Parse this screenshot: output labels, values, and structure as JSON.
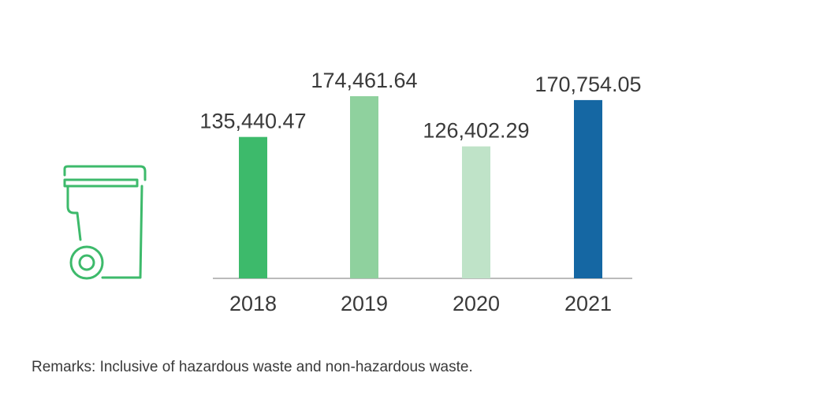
{
  "chart_data": {
    "type": "bar",
    "title": "",
    "xlabel": "",
    "ylabel": "",
    "categories": [
      "2018",
      "2019",
      "2020",
      "2021"
    ],
    "values": [
      135440.47,
      174461.64,
      126402.29,
      170754.05
    ],
    "value_labels": [
      "135,440.47",
      "174,461.64",
      "126,402.29",
      "170,754.05"
    ],
    "bar_colors": [
      "#3dba6b",
      "#8fd19e",
      "#bfe3c8",
      "#1567a3"
    ],
    "ylim": [
      0,
      200000
    ],
    "grid": false,
    "legend": "none"
  },
  "colors": {
    "axis": "#bbbbbb",
    "icon": "#3dba6b",
    "text": "#3a3a3a"
  },
  "icon": {
    "name": "waste-bin-icon"
  },
  "remarks": "Remarks: Inclusive of hazardous waste and non-hazardous waste."
}
